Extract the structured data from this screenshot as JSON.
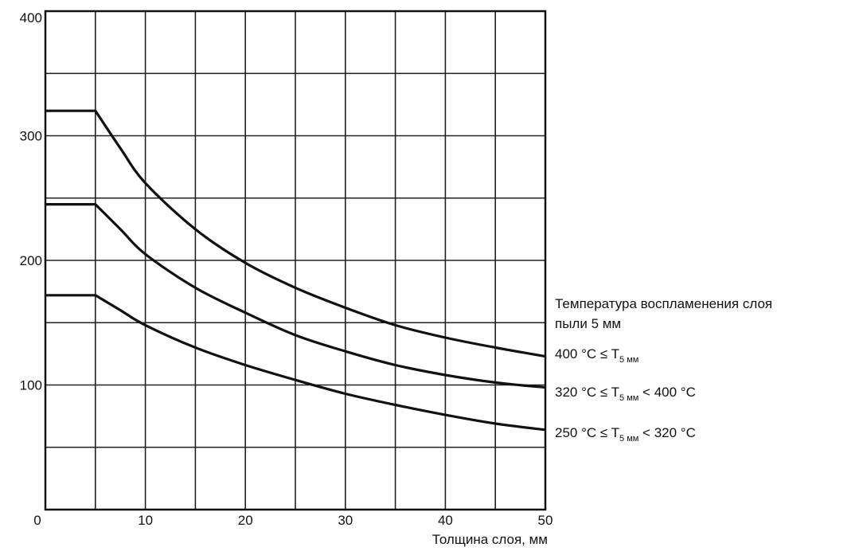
{
  "chart_data": {
    "type": "line",
    "title": "",
    "xlabel": "Толщина слоя, мм",
    "ylabel": "",
    "xlim": [
      0,
      50
    ],
    "ylim": [
      0,
      400
    ],
    "x_ticks": [
      "0",
      "10",
      "20",
      "30",
      "40",
      "50"
    ],
    "y_ticks": [
      "0",
      "100",
      "200",
      "300",
      "400"
    ],
    "grid": true,
    "grid_x_step": 5,
    "grid_y_step": 50,
    "legend_title_line1": "Температура воспламенения слоя",
    "legend_title_line2": "пыли 5 мм",
    "legend_placement": "right",
    "series": [
      {
        "label_main": "400 °C ≤ T",
        "label_sub": "5 мм",
        "label_tail": "",
        "x": [
          0,
          5,
          7.5,
          10,
          15,
          20,
          25,
          30,
          35,
          40,
          45,
          50
        ],
        "y": [
          320,
          320,
          290,
          262,
          225,
          198,
          178,
          162,
          148,
          138,
          130,
          123
        ]
      },
      {
        "label_main": "320 °C ≤ T",
        "label_sub": "5 мм",
        "label_tail": " < 400 °C",
        "x": [
          0,
          5,
          7.5,
          10,
          15,
          20,
          25,
          30,
          35,
          40,
          45,
          50
        ],
        "y": [
          245,
          245,
          225,
          205,
          178,
          158,
          140,
          127,
          116,
          108,
          102,
          98
        ]
      },
      {
        "label_main": "250 °C ≤ T",
        "label_sub": "5 мм",
        "label_tail": " < 320 °C",
        "x": [
          0,
          5,
          7.5,
          10,
          15,
          20,
          25,
          30,
          35,
          40,
          45,
          50
        ],
        "y": [
          172,
          172,
          160,
          148,
          130,
          116,
          104,
          93,
          84,
          76,
          69,
          64
        ]
      }
    ]
  }
}
